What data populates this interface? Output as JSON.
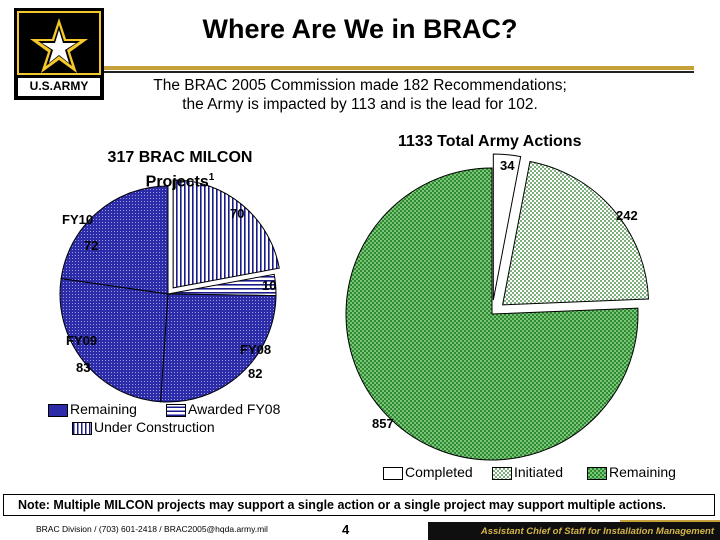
{
  "title": "Where Are We in BRAC?",
  "logo": {
    "text": "U.S.ARMY",
    "colors": {
      "gold": "#f4c82a",
      "black": "#000000"
    }
  },
  "subtitle": [
    "The BRAC 2005 Commission made 182 Recommendations;",
    "the Army is impacted by 113 and is the lead for 102."
  ],
  "chart_data": [
    {
      "type": "pie",
      "title": "317 BRAC MILCON Projects1",
      "title_lines": [
        "317 BRAC MILCON",
        "Projects"
      ],
      "title_superscript": "1",
      "slices": [
        {
          "label": "70",
          "value": 70,
          "pattern": "blue-vertical",
          "exploded": true
        },
        {
          "label": "10",
          "value": 10,
          "pattern": "blue-horizontal",
          "exploded": false
        },
        {
          "label": "82",
          "value": 82,
          "pattern": "blue-dots",
          "exploded": false
        },
        {
          "label": "83",
          "value": 83,
          "pattern": "blue-dots",
          "exploded": false
        },
        {
          "label": "72",
          "value": 72,
          "pattern": "blue-dots",
          "exploded": false
        }
      ],
      "annotations": [
        "FY10",
        "FY09",
        "FY08"
      ],
      "legend": [
        "Remaining",
        "Awarded FY08",
        "Under Construction"
      ],
      "legend_placement": "bottom"
    },
    {
      "type": "pie",
      "title": "1133 Total Army Actions",
      "slices": [
        {
          "label": "34",
          "value": 34,
          "pattern": "white",
          "exploded": true
        },
        {
          "label": "242",
          "value": 242,
          "pattern": "green-checker-light",
          "exploded": true
        },
        {
          "label": "857",
          "value": 857,
          "pattern": "green-checker",
          "exploded": false
        }
      ],
      "legend": [
        "Completed",
        "Initiated",
        "Remaining"
      ],
      "legend_placement": "bottom"
    }
  ],
  "note": "Note:  Multiple MILCON projects may support a single action or a single project may support multiple actions.",
  "footer": {
    "left": "BRAC Division / (703) 601-2418 / BRAC2005@hqda.army.mil",
    "page": "4",
    "right": "Assistant Chief of Staff for Installation Management"
  },
  "colors": {
    "gold": "#c6a13a",
    "navy": "#1a1a8c",
    "green": "#2e8a2e"
  }
}
